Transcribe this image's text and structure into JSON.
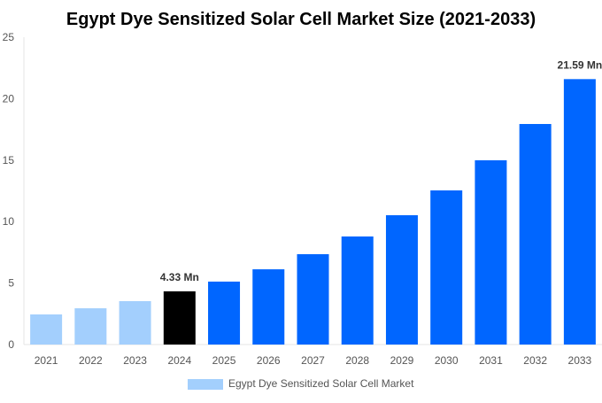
{
  "chart_data": {
    "type": "bar",
    "title": "Egypt Dye Sensitized Solar Cell Market Size (2021-2033)",
    "xlabel": "",
    "ylabel": "",
    "ylim": [
      0,
      25
    ],
    "yticks": [
      0,
      5,
      10,
      15,
      20,
      25
    ],
    "grid": false,
    "legend_position": "bottom",
    "categories": [
      "2021",
      "2022",
      "2023",
      "2024",
      "2025",
      "2026",
      "2027",
      "2028",
      "2029",
      "2030",
      "2031",
      "2032",
      "2033"
    ],
    "series": [
      {
        "name": "Egypt Dye Sensitized Solar Cell Market",
        "values": [
          2.45,
          2.95,
          3.53,
          4.33,
          5.12,
          6.12,
          7.35,
          8.79,
          10.52,
          12.54,
          14.99,
          17.94,
          21.59
        ]
      }
    ],
    "bar_colors": {
      "historical": "#a3cffd",
      "base_year": "#000000",
      "forecast": "#0066ff"
    },
    "data_labels": [
      {
        "category": "2024",
        "text": "4.33 Mn"
      },
      {
        "category": "2033",
        "text": "21.59 Mn"
      }
    ]
  }
}
